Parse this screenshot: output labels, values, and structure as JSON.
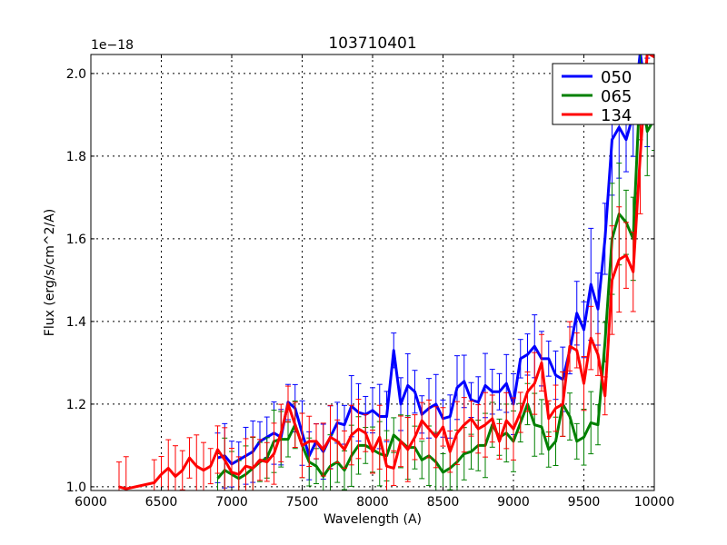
{
  "chart_data": {
    "type": "line",
    "title": "103710401",
    "xlabel": "Wavelength (A)",
    "ylabel": "Flux (erg/s/cm^2/A)",
    "y_offset_label": "1e−18",
    "xlim": [
      6000,
      10000
    ],
    "ylim": [
      0.991,
      2.046
    ],
    "xticks": [
      6000,
      6500,
      7000,
      7500,
      8000,
      8500,
      9000,
      9500,
      10000
    ],
    "yticks": [
      1.0,
      1.2,
      1.4,
      1.6,
      1.8,
      2.0
    ],
    "xtick_labels": [
      "6000",
      "6500",
      "7000",
      "7500",
      "8000",
      "8500",
      "9000",
      "9500",
      "10000"
    ],
    "ytick_labels": [
      "1.0",
      "1.2",
      "1.4",
      "1.6",
      "1.8",
      "2.0"
    ],
    "grid": true,
    "legend_position": "top-right",
    "series": [
      {
        "name": "050",
        "color": "#0000ff",
        "yerr": 0.06,
        "x": [
          6900,
          6950,
          7000,
          7050,
          7100,
          7150,
          7200,
          7250,
          7300,
          7350,
          7400,
          7450,
          7500,
          7550,
          7600,
          7650,
          7700,
          7750,
          7800,
          7850,
          7900,
          7950,
          8000,
          8050,
          8100,
          8150,
          8200,
          8250,
          8300,
          8350,
          8400,
          8450,
          8500,
          8550,
          8600,
          8650,
          8700,
          8750,
          8800,
          8850,
          8900,
          8950,
          9000,
          9050,
          9100,
          9150,
          9200,
          9250,
          9300,
          9350,
          9400,
          9450,
          9500,
          9550,
          9600,
          9650,
          9700,
          9750,
          9800,
          9850,
          9900,
          9950,
          10000
        ],
        "y": [
          1.07,
          1.075,
          1.055,
          1.065,
          1.075,
          1.085,
          1.11,
          1.12,
          1.13,
          1.12,
          1.205,
          1.19,
          1.13,
          1.075,
          1.11,
          1.085,
          1.12,
          1.155,
          1.15,
          1.195,
          1.18,
          1.175,
          1.185,
          1.17,
          1.17,
          1.33,
          1.2,
          1.245,
          1.23,
          1.175,
          1.19,
          1.2,
          1.165,
          1.17,
          1.24,
          1.255,
          1.21,
          1.205,
          1.245,
          1.23,
          1.23,
          1.25,
          1.2,
          1.31,
          1.32,
          1.34,
          1.31,
          1.31,
          1.27,
          1.26,
          1.33,
          1.42,
          1.38,
          1.49,
          1.43,
          1.6,
          1.84,
          1.87,
          1.84,
          1.9,
          2.05,
          1.93,
          1.97
        ]
      },
      {
        "name": "065",
        "color": "#008000",
        "yerr": 0.06,
        "x": [
          6900,
          6950,
          7000,
          7050,
          7100,
          7150,
          7200,
          7250,
          7300,
          7350,
          7400,
          7450,
          7500,
          7550,
          7600,
          7650,
          7700,
          7750,
          7800,
          7850,
          7900,
          7950,
          8000,
          8050,
          8100,
          8150,
          8200,
          8250,
          8300,
          8350,
          8400,
          8450,
          8500,
          8550,
          8600,
          8650,
          8700,
          8750,
          8800,
          8850,
          8900,
          8950,
          9000,
          9050,
          9100,
          9150,
          9200,
          9250,
          9300,
          9350,
          9400,
          9450,
          9500,
          9550,
          9600,
          9650,
          9700,
          9750,
          9800,
          9850,
          9900,
          9950,
          10000
        ],
        "y": [
          1.02,
          1.04,
          1.03,
          1.02,
          1.03,
          1.045,
          1.06,
          1.07,
          1.11,
          1.115,
          1.115,
          1.15,
          1.1,
          1.06,
          1.05,
          1.025,
          1.05,
          1.06,
          1.04,
          1.075,
          1.1,
          1.1,
          1.09,
          1.08,
          1.075,
          1.125,
          1.11,
          1.095,
          1.095,
          1.065,
          1.075,
          1.06,
          1.035,
          1.045,
          1.06,
          1.08,
          1.085,
          1.1,
          1.1,
          1.15,
          1.12,
          1.13,
          1.11,
          1.155,
          1.2,
          1.15,
          1.145,
          1.09,
          1.11,
          1.2,
          1.17,
          1.11,
          1.12,
          1.155,
          1.15,
          1.35,
          1.6,
          1.66,
          1.64,
          1.6,
          1.98,
          1.86,
          1.89
        ]
      },
      {
        "name": "134",
        "color": "#ff0000",
        "yerr": 0.06,
        "x": [
          6200,
          6250,
          6450,
          6500,
          6550,
          6600,
          6650,
          6700,
          6750,
          6800,
          6850,
          6900,
          6950,
          7000,
          7050,
          7100,
          7150,
          7200,
          7250,
          7300,
          7350,
          7400,
          7450,
          7500,
          7550,
          7600,
          7650,
          7700,
          7750,
          7800,
          7850,
          7900,
          7950,
          8000,
          8050,
          8100,
          8150,
          8200,
          8250,
          8300,
          8350,
          8400,
          8450,
          8500,
          8550,
          8600,
          8650,
          8700,
          8750,
          8800,
          8850,
          8900,
          8950,
          9000,
          9050,
          9100,
          9150,
          9200,
          9250,
          9300,
          9350,
          9400,
          9450,
          9500,
          9550,
          9600,
          9650,
          9700,
          9750,
          9800,
          9850,
          9900,
          9950,
          10000
        ],
        "y": [
          1.0,
          0.995,
          1.01,
          1.03,
          1.045,
          1.025,
          1.04,
          1.07,
          1.05,
          1.04,
          1.05,
          1.09,
          1.065,
          1.035,
          1.03,
          1.05,
          1.045,
          1.065,
          1.06,
          1.08,
          1.13,
          1.2,
          1.15,
          1.1,
          1.11,
          1.11,
          1.09,
          1.12,
          1.11,
          1.09,
          1.125,
          1.14,
          1.13,
          1.085,
          1.12,
          1.05,
          1.045,
          1.11,
          1.09,
          1.12,
          1.16,
          1.14,
          1.12,
          1.145,
          1.085,
          1.13,
          1.15,
          1.165,
          1.14,
          1.15,
          1.165,
          1.11,
          1.16,
          1.14,
          1.18,
          1.23,
          1.25,
          1.3,
          1.165,
          1.19,
          1.2,
          1.34,
          1.33,
          1.25,
          1.36,
          1.32,
          1.22,
          1.5,
          1.55,
          1.56,
          1.52,
          1.8,
          2.05,
          2.04
        ]
      }
    ]
  }
}
